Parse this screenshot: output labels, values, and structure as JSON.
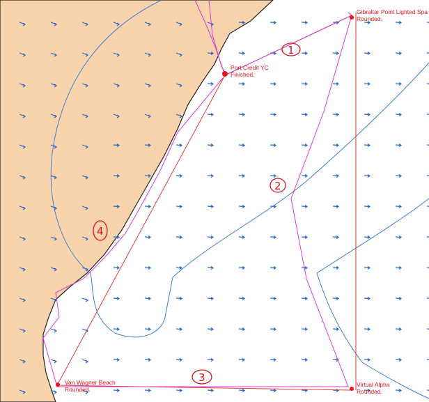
{
  "waypoints": [
    {
      "name": "Gibraltar Point Lighted Spa",
      "status": "Rounded."
    },
    {
      "name": "Port Credit YC",
      "status": "Finished."
    },
    {
      "name": "Van Wagner Beach",
      "status": "Rounded."
    },
    {
      "name": "Virtual Alpha",
      "status": "Rounded."
    }
  ],
  "legs": [
    "1",
    "2",
    "3",
    "4"
  ]
}
